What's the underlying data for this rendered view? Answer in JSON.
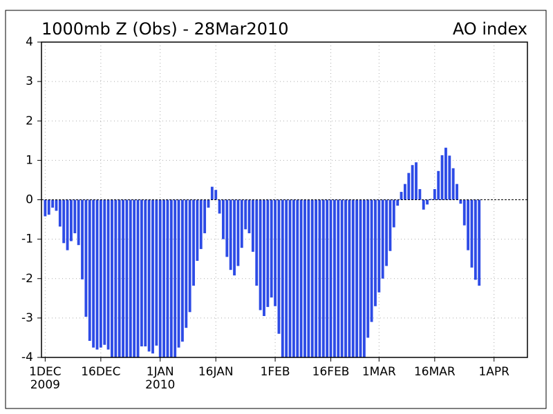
{
  "chart_data": {
    "type": "bar",
    "title": "1000mb Z (Obs) - 28Mar2010",
    "subtitle": "AO index",
    "color": "#2d4be6",
    "x": [
      "2009-12-01",
      "2009-12-02",
      "2009-12-03",
      "2009-12-04",
      "2009-12-05",
      "2009-12-06",
      "2009-12-07",
      "2009-12-08",
      "2009-12-09",
      "2009-12-10",
      "2009-12-11",
      "2009-12-12",
      "2009-12-13",
      "2009-12-14",
      "2009-12-15",
      "2009-12-16",
      "2009-12-17",
      "2009-12-18",
      "2009-12-19",
      "2009-12-20",
      "2009-12-21",
      "2009-12-22",
      "2009-12-23",
      "2009-12-24",
      "2009-12-25",
      "2009-12-26",
      "2009-12-27",
      "2009-12-28",
      "2009-12-29",
      "2009-12-30",
      "2009-12-31",
      "2010-01-01",
      "2010-01-02",
      "2010-01-03",
      "2010-01-04",
      "2010-01-05",
      "2010-01-06",
      "2010-01-07",
      "2010-01-08",
      "2010-01-09",
      "2010-01-10",
      "2010-01-11",
      "2010-01-12",
      "2010-01-13",
      "2010-01-14",
      "2010-01-15",
      "2010-01-16",
      "2010-01-17",
      "2010-01-18",
      "2010-01-19",
      "2010-01-20",
      "2010-01-21",
      "2010-01-22",
      "2010-01-23",
      "2010-01-24",
      "2010-01-25",
      "2010-01-26",
      "2010-01-27",
      "2010-01-28",
      "2010-01-29",
      "2010-01-30",
      "2010-01-31",
      "2010-02-01",
      "2010-02-02",
      "2010-02-03",
      "2010-02-04",
      "2010-02-05",
      "2010-02-06",
      "2010-02-07",
      "2010-02-08",
      "2010-02-09",
      "2010-02-10",
      "2010-02-11",
      "2010-02-12",
      "2010-02-13",
      "2010-02-14",
      "2010-02-15",
      "2010-02-16",
      "2010-02-17",
      "2010-02-18",
      "2010-02-19",
      "2010-02-20",
      "2010-02-21",
      "2010-02-22",
      "2010-02-23",
      "2010-02-24",
      "2010-02-25",
      "2010-02-26",
      "2010-02-27",
      "2010-02-28",
      "2010-03-01",
      "2010-03-02",
      "2010-03-03",
      "2010-03-04",
      "2010-03-05",
      "2010-03-06",
      "2010-03-07",
      "2010-03-08",
      "2010-03-09",
      "2010-03-10",
      "2010-03-11",
      "2010-03-12",
      "2010-03-13",
      "2010-03-14",
      "2010-03-15",
      "2010-03-16",
      "2010-03-17",
      "2010-03-18",
      "2010-03-19",
      "2010-03-20",
      "2010-03-21",
      "2010-03-22",
      "2010-03-23",
      "2010-03-24",
      "2010-03-25",
      "2010-03-26",
      "2010-03-27",
      "2010-03-28"
    ],
    "values": [
      -0.42,
      -0.38,
      -0.2,
      -0.28,
      -0.68,
      -1.1,
      -1.28,
      -1.05,
      -0.85,
      -1.15,
      -2.02,
      -2.97,
      -3.58,
      -3.75,
      -3.8,
      -3.75,
      -3.68,
      -3.8,
      -4,
      -4,
      -4,
      -4,
      -4,
      -4,
      -4,
      -4,
      -3.72,
      -3.72,
      -3.85,
      -3.9,
      -3.7,
      -4,
      -4,
      -4,
      -4,
      -4,
      -3.75,
      -3.6,
      -3.25,
      -2.85,
      -2.18,
      -1.55,
      -1.25,
      -0.85,
      -0.2,
      0.33,
      0.25,
      -0.35,
      -1.0,
      -1.45,
      -1.78,
      -1.92,
      -1.68,
      -1.22,
      -0.75,
      -0.85,
      -1.32,
      -2.18,
      -2.8,
      -2.95,
      -2.72,
      -2.48,
      -2.7,
      -3.4,
      -4,
      -4,
      -4,
      -4,
      -4,
      -4,
      -4,
      -4,
      -4,
      -4,
      -4,
      -4,
      -4,
      -4,
      -4,
      -4,
      -4,
      -4,
      -4,
      -4,
      -4,
      -4,
      -4,
      -3.5,
      -3.1,
      -2.7,
      -2.35,
      -2.0,
      -1.68,
      -1.3,
      -0.7,
      -0.15,
      0.2,
      0.4,
      0.68,
      0.88,
      0.95,
      0.27,
      -0.25,
      -0.12,
      0.02,
      0.27,
      0.73,
      1.13,
      1.32,
      1.12,
      0.8,
      0.4,
      -0.1,
      -0.65,
      -1.28,
      -1.72,
      -2.03,
      -2.18
    ],
    "xlim": [
      "2009-11-30",
      "2010-04-10"
    ],
    "xticks": [
      {
        "value": "2009-12-01",
        "label": "1DEC",
        "year": "2009"
      },
      {
        "value": "2009-12-16",
        "label": "16DEC"
      },
      {
        "value": "2010-01-01",
        "label": "1JAN",
        "year": "2010"
      },
      {
        "value": "2010-01-16",
        "label": "16JAN"
      },
      {
        "value": "2010-02-01",
        "label": "1FEB"
      },
      {
        "value": "2010-02-16",
        "label": "16FEB"
      },
      {
        "value": "2010-03-01",
        "label": "1MAR"
      },
      {
        "value": "2010-03-16",
        "label": "16MAR"
      },
      {
        "value": "2010-04-01",
        "label": "1APR"
      }
    ],
    "ylim": [
      -4,
      4
    ],
    "yticks": [
      -4,
      -3,
      -2,
      -1,
      0,
      1,
      2,
      3,
      4
    ],
    "grid": true
  }
}
